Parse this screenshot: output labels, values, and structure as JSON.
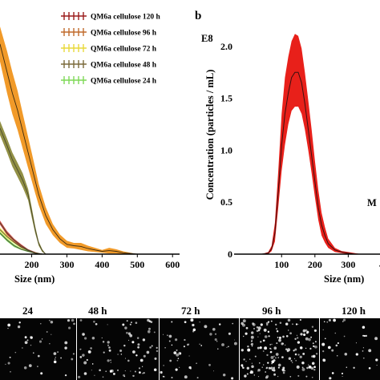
{
  "panel_a": {
    "legend": [
      {
        "label": "QM6a cellulose 120 h",
        "color": "#9b1b1b"
      },
      {
        "label": "QM6a cellulose 96 h",
        "color": "#c06a2b"
      },
      {
        "label": "QM6a cellulose 72 h",
        "color": "#e8d83a"
      },
      {
        "label": "QM6a cellulose 48 h",
        "color": "#7a6a3a"
      },
      {
        "label": "QM6a cellulose 24 h",
        "color": "#7ed957"
      }
    ],
    "x_ticks": [
      "200",
      "300",
      "400",
      "500",
      "600"
    ],
    "x_title": "Size (nm)"
  },
  "panel_b": {
    "label": "b",
    "exponent": "E8",
    "y_title": "Concentration (particles / mL)",
    "y_ticks": [
      "2.0",
      "1.5",
      "1.0",
      "0.5",
      "0"
    ],
    "x_ticks": [
      "100",
      "200",
      "300",
      "4"
    ],
    "x_title": "Size (nm)",
    "side_text": "M"
  },
  "chart_data": [
    {
      "type": "line",
      "xlabel": "Size (nm)",
      "ylabel": "",
      "xlim": [
        110,
        620
      ],
      "series": [
        {
          "name": "QM6a cellulose 96 h",
          "x": [
            110,
            130,
            145,
            160,
            175,
            190,
            200,
            210,
            220,
            240,
            260,
            280,
            300,
            320,
            340,
            360,
            380,
            400,
            420,
            440,
            460,
            480,
            500
          ],
          "mean": [
            3.0,
            2.6,
            2.3,
            2.05,
            1.75,
            1.45,
            1.25,
            1.05,
            0.85,
            0.55,
            0.35,
            0.22,
            0.14,
            0.12,
            0.11,
            0.08,
            0.06,
            0.04,
            0.05,
            0.04,
            0.02,
            0.01,
            0.0
          ],
          "band": [
            0.25,
            0.3,
            0.3,
            0.28,
            0.25,
            0.22,
            0.2,
            0.18,
            0.15,
            0.12,
            0.08,
            0.06,
            0.05,
            0.04,
            0.05,
            0.04,
            0.03,
            0.02,
            0.04,
            0.03,
            0.02,
            0.01,
            0.0
          ]
        },
        {
          "name": "QM6a cellulose 48 h",
          "x": [
            110,
            130,
            145,
            160,
            175,
            190,
            200,
            210,
            220,
            230,
            240
          ],
          "mean": [
            1.8,
            1.55,
            1.35,
            1.2,
            1.05,
            0.85,
            0.6,
            0.35,
            0.15,
            0.05,
            0.0
          ],
          "band": [
            0.1,
            0.1,
            0.1,
            0.1,
            0.1,
            0.08,
            0.07,
            0.05,
            0.03,
            0.02,
            0.0
          ]
        },
        {
          "name": "QM6a cellulose 72 h",
          "x": [
            110,
            130,
            150,
            170,
            190,
            210,
            230
          ],
          "mean": [
            0.35,
            0.25,
            0.17,
            0.1,
            0.05,
            0.02,
            0.0
          ],
          "band": [
            0.03,
            0.03,
            0.02,
            0.02,
            0.01,
            0.01,
            0.0
          ]
        },
        {
          "name": "QM6a cellulose 24 h",
          "x": [
            110,
            130,
            150,
            170,
            190,
            210,
            230
          ],
          "mean": [
            0.3,
            0.2,
            0.12,
            0.07,
            0.04,
            0.01,
            0.0
          ],
          "band": [
            0.02,
            0.02,
            0.02,
            0.01,
            0.01,
            0.0,
            0.0
          ]
        },
        {
          "name": "QM6a cellulose 120 h",
          "x": [
            110,
            130,
            150,
            170,
            190,
            210,
            230
          ],
          "mean": [
            0.45,
            0.3,
            0.2,
            0.12,
            0.06,
            0.02,
            0.0
          ],
          "band": [
            0.03,
            0.03,
            0.02,
            0.02,
            0.01,
            0.01,
            0.0
          ]
        }
      ]
    },
    {
      "type": "line",
      "xlabel": "Size (nm)",
      "ylabel": "Concentration (particles / mL)",
      "xlim": [
        20,
        340
      ],
      "ylim": [
        0,
        2.2
      ],
      "series": [
        {
          "name": "",
          "x": [
            20,
            40,
            60,
            70,
            80,
            90,
            100,
            110,
            120,
            130,
            140,
            150,
            160,
            170,
            180,
            190,
            200,
            210,
            220,
            230,
            240,
            260,
            280,
            300,
            320,
            340
          ],
          "mean": [
            0.0,
            0.0,
            0.01,
            0.05,
            0.2,
            0.6,
            1.05,
            1.35,
            1.55,
            1.7,
            1.75,
            1.75,
            1.65,
            1.45,
            1.2,
            0.95,
            0.7,
            0.45,
            0.28,
            0.18,
            0.1,
            0.04,
            0.02,
            0.01,
            0.0,
            0.0
          ],
          "upper": [
            0.0,
            0.0,
            0.02,
            0.08,
            0.3,
            0.8,
            1.35,
            1.7,
            1.9,
            2.05,
            2.12,
            2.1,
            1.98,
            1.75,
            1.48,
            1.2,
            0.9,
            0.62,
            0.4,
            0.26,
            0.15,
            0.06,
            0.03,
            0.02,
            0.01,
            0.0
          ],
          "lower": [
            0.0,
            0.0,
            0.0,
            0.03,
            0.12,
            0.45,
            0.8,
            1.05,
            1.25,
            1.38,
            1.42,
            1.42,
            1.35,
            1.2,
            1.0,
            0.78,
            0.55,
            0.33,
            0.18,
            0.11,
            0.06,
            0.02,
            0.01,
            0.0,
            0.0,
            0.0
          ]
        }
      ]
    }
  ],
  "timepoints": [
    "24",
    "48 h",
    "72 h",
    "96 h",
    "120 h"
  ]
}
